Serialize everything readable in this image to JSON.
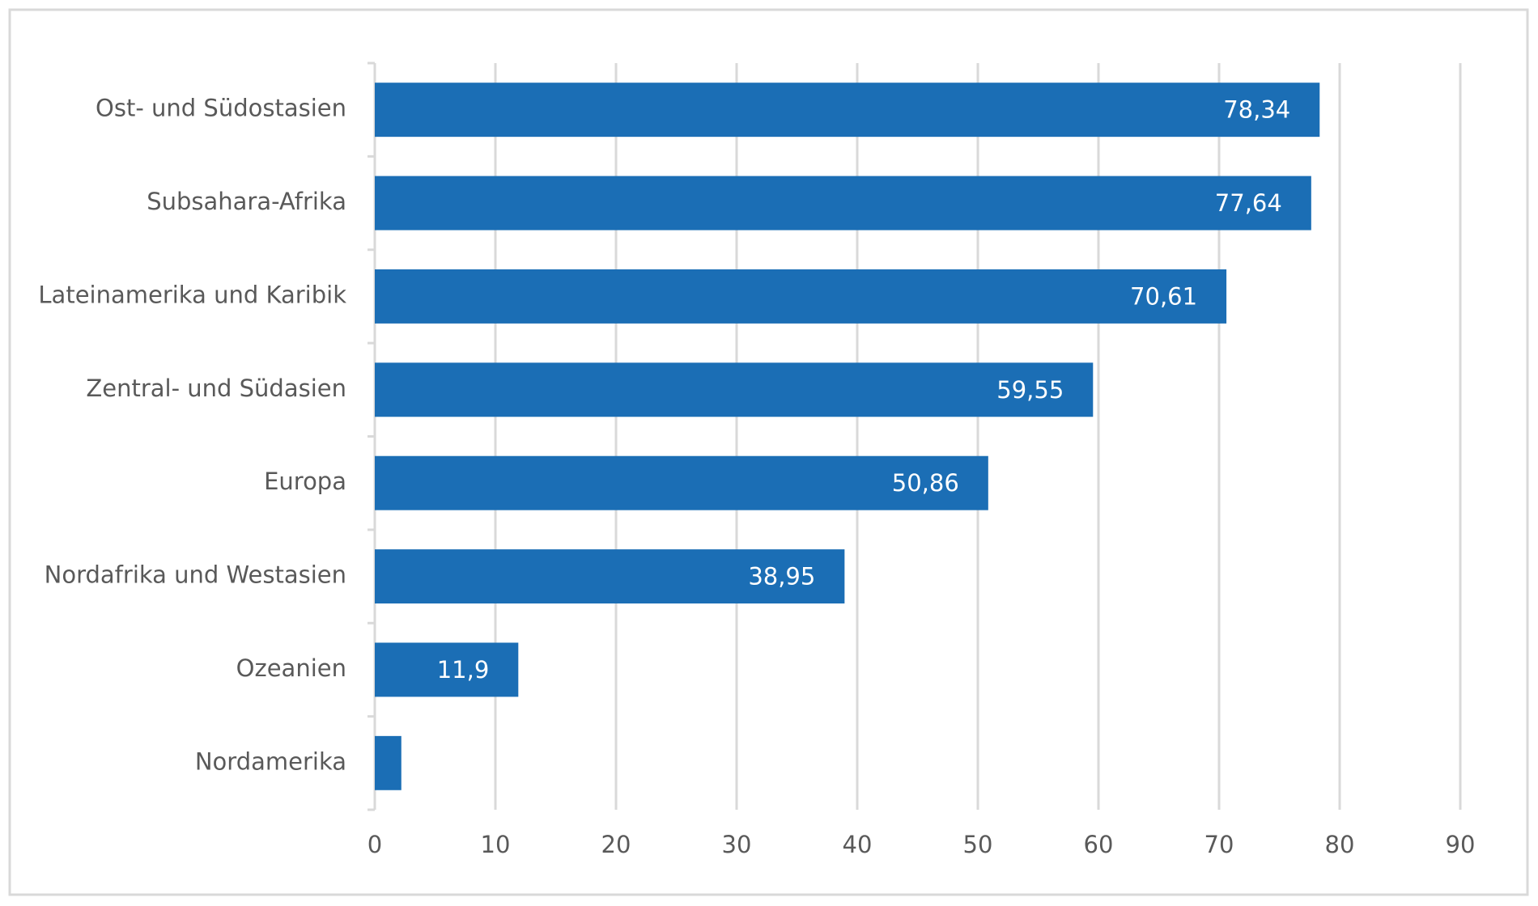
{
  "chart_data": {
    "type": "bar",
    "orientation": "horizontal",
    "categories": [
      "Ost- und Südostasien",
      "Subsahara-Afrika",
      "Lateinamerika und Karibik",
      "Zentral- und Südasien",
      "Europa",
      "Nordafrika und Westasien",
      "Ozeanien",
      "Nordamerika"
    ],
    "values": [
      78.34,
      77.64,
      70.61,
      59.55,
      50.86,
      38.95,
      11.9,
      2.2
    ],
    "value_labels": [
      "78,34",
      "77,64",
      "70,61",
      "59,55",
      "50,86",
      "38,95",
      "11,9",
      null
    ],
    "color": "#1b6eb5",
    "xlim": [
      0,
      90
    ],
    "xticks": [
      0,
      10,
      20,
      30,
      40,
      50,
      60,
      70,
      80,
      90
    ],
    "grid": true
  }
}
